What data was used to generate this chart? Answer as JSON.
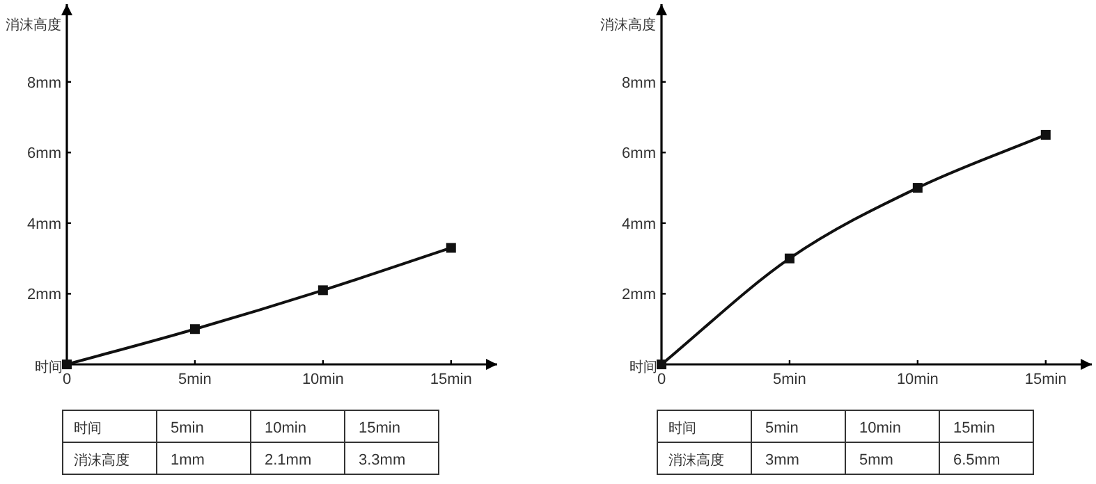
{
  "chart_data": [
    {
      "type": "line",
      "xlabel": "时间",
      "ylabel": "消沫高度",
      "x": [
        0,
        5,
        10,
        15
      ],
      "values": [
        0,
        1,
        2.1,
        3.3
      ],
      "annotations": [
        "时间",
        "5min",
        "10min",
        "15min",
        "消沫高度",
        "1mm",
        "2.1mm",
        "3.3mm"
      ],
      "color": "#111111",
      "marker": "square",
      "line_style": "solid",
      "xlim": [
        0,
        16.8
      ],
      "ylim": [
        0,
        10.2
      ],
      "xticks": [
        {
          "value": 0,
          "label": "0"
        },
        {
          "value": 5,
          "label": "5min"
        },
        {
          "value": 10,
          "label": "10min"
        },
        {
          "value": 15,
          "label": "15min"
        }
      ],
      "yticks": [
        {
          "value": 2,
          "label": "2mm"
        },
        {
          "value": 4,
          "label": "4mm"
        },
        {
          "value": 6,
          "label": "6mm"
        },
        {
          "value": 8,
          "label": "8mm"
        }
      ]
    },
    {
      "type": "line",
      "xlabel": "时间",
      "ylabel": "消沫高度",
      "x": [
        0,
        5,
        10,
        15
      ],
      "values": [
        0,
        3,
        5,
        6.5
      ],
      "annotations": [
        "时间",
        "5min",
        "10min",
        "15min",
        "消沫高度",
        "3mm",
        "5mm",
        "6.5mm"
      ],
      "color": "#111111",
      "marker": "square",
      "line_style": "solid",
      "xlim": [
        0,
        16.8
      ],
      "ylim": [
        0,
        10.2
      ],
      "xticks": [
        {
          "value": 0,
          "label": "0"
        },
        {
          "value": 5,
          "label": "5min"
        },
        {
          "value": 10,
          "label": "10min"
        },
        {
          "value": 15,
          "label": "15min"
        }
      ],
      "yticks": [
        {
          "value": 2,
          "label": "2mm"
        },
        {
          "value": 4,
          "label": "4mm"
        },
        {
          "value": 6,
          "label": "6mm"
        },
        {
          "value": 8,
          "label": "8mm"
        }
      ]
    }
  ]
}
